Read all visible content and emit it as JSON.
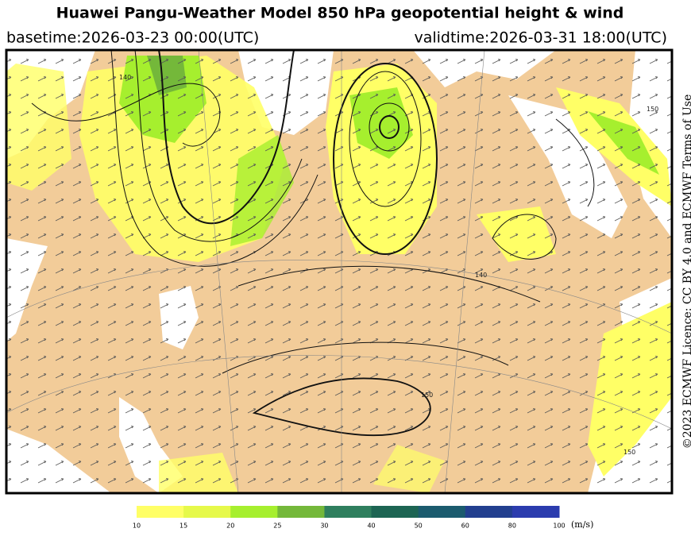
{
  "header": {
    "title": "Huawei Pangu-Weather Model 850 hPa geopotential height & wind",
    "basetime": "basetime:2026-03-23 00:00(UTC)",
    "validtime": "validtime:2026-03-31 18:00(UTC)"
  },
  "map": {
    "contour_labels": [
      "140",
      "150",
      "150",
      "140",
      "150"
    ]
  },
  "colorbar": {
    "ticks": [
      10,
      15,
      20,
      25,
      30,
      40,
      50,
      60,
      80,
      100
    ],
    "colors": [
      "#ffff66",
      "#e6f94a",
      "#a6ef2e",
      "#74b83a",
      "#2f7f5e",
      "#1d6553",
      "#1b5b6e",
      "#223f8f",
      "#2b3cae"
    ],
    "unit": "(m/s)"
  },
  "footer": {
    "license": "©2023 ECMWF Licence: CC BY 4.0 and ECMWF Terms of Use"
  }
}
